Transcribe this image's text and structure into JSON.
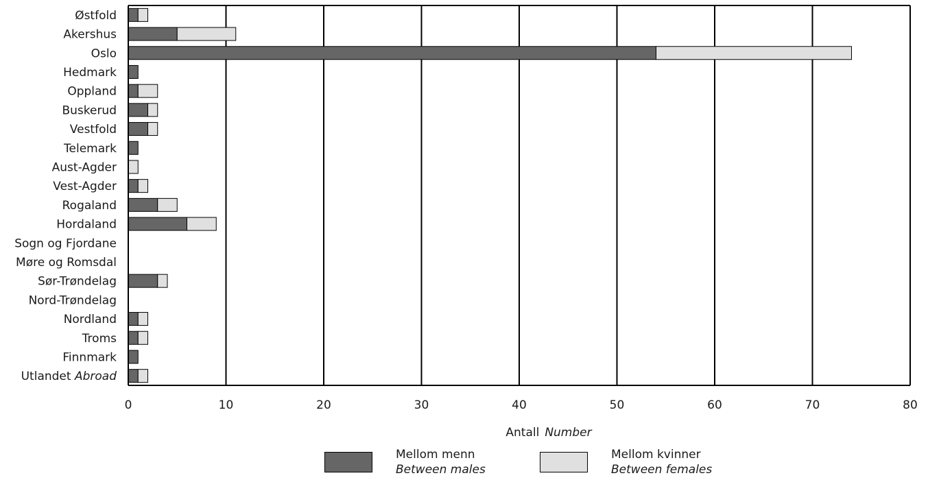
{
  "chart_data": {
    "type": "bar",
    "orientation": "horizontal",
    "stacked": true,
    "categories": [
      "Østfold",
      "Akershus",
      "Oslo",
      "Hedmark",
      "Oppland",
      "Buskerud",
      "Vestfold",
      "Telemark",
      "Aust-Agder",
      "Vest-Agder",
      "Rogaland",
      "Hordaland",
      "Sogn og Fjordane",
      "Møre og Romsdal",
      "Sør-Trøndelag",
      "Nord-Trøndelag",
      "Nordland",
      "Troms",
      "Finnmark",
      "Utlandet"
    ],
    "last_category_italic_suffix": "Abroad",
    "series": [
      {
        "name": "Mellom menn",
        "name_en": "Between males",
        "color": "#666666",
        "values": [
          1,
          5,
          54,
          1,
          1,
          2,
          2,
          1,
          0,
          1,
          3,
          6,
          0,
          0,
          3,
          0,
          1,
          1,
          1,
          1
        ]
      },
      {
        "name": "Mellom kvinner",
        "name_en": "Between females",
        "color": "#e0e0e0",
        "values": [
          1,
          6,
          20,
          0,
          2,
          1,
          1,
          0,
          1,
          1,
          2,
          3,
          0,
          0,
          1,
          0,
          1,
          1,
          0,
          1
        ]
      }
    ],
    "xlim": [
      0,
      80
    ],
    "xticks": [
      0,
      10,
      20,
      30,
      40,
      50,
      60,
      70,
      80
    ],
    "xlabel": "Antall",
    "xlabel_en": "Number",
    "grid": "vertical",
    "legend_position": "bottom"
  }
}
